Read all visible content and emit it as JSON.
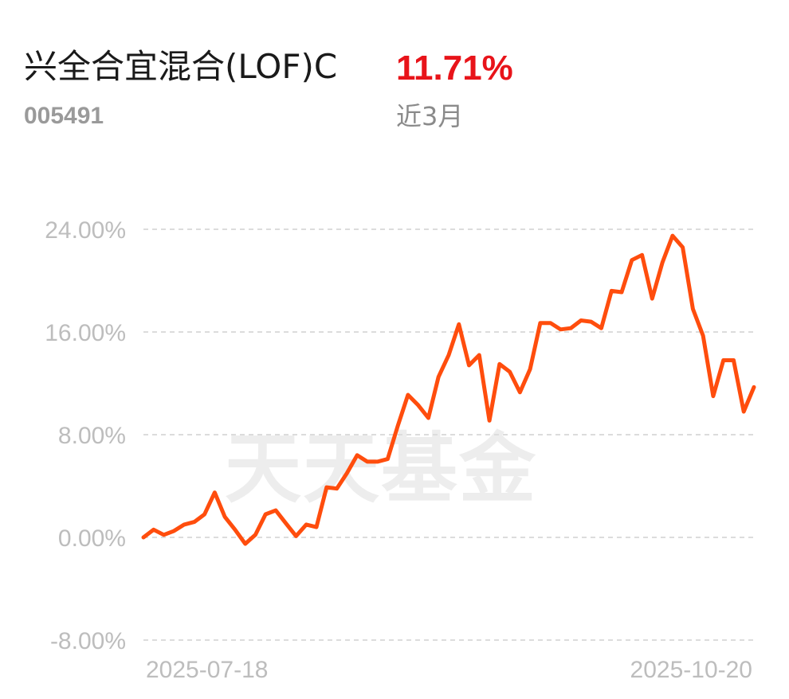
{
  "header": {
    "fund_name": "兴全合宜混合(LOF)C",
    "return_value": "11.71%",
    "fund_code": "005491",
    "period_label": "近3月"
  },
  "watermark": "天天基金",
  "colors": {
    "line": "#ff4d0d",
    "return": "#e8141a",
    "grid": "#dcdcdc",
    "tick": "#bdbdbd"
  },
  "chart_data": {
    "type": "line",
    "ylim": [
      -8,
      24
    ],
    "y_ticks": [
      "24.00%",
      "16.00%",
      "8.00%",
      "0.00%",
      "-8.00%"
    ],
    "y_tick_values": [
      24,
      16,
      8,
      0,
      -8
    ],
    "x_tick_labels": [
      "2025-07-18",
      "2025-10-20"
    ],
    "grid": true,
    "series": [
      {
        "values": [
          0.0,
          0.6,
          0.2,
          0.5,
          1.0,
          1.2,
          1.8,
          3.5,
          1.6,
          0.6,
          -0.5,
          0.2,
          1.8,
          2.1,
          1.1,
          0.1,
          1.0,
          0.8,
          3.9,
          3.8,
          5.0,
          6.4,
          5.9,
          5.9,
          6.1,
          8.7,
          11.1,
          10.3,
          9.3,
          12.5,
          14.2,
          16.6,
          13.4,
          14.2,
          9.1,
          13.5,
          12.9,
          11.3,
          13.1,
          16.7,
          16.7,
          16.2,
          16.3,
          16.9,
          16.8,
          16.3,
          19.2,
          19.1,
          21.6,
          22.0,
          18.6,
          21.4,
          23.5,
          22.6,
          17.8,
          15.7,
          11.0,
          13.8,
          13.8,
          9.8,
          11.7
        ]
      }
    ]
  }
}
